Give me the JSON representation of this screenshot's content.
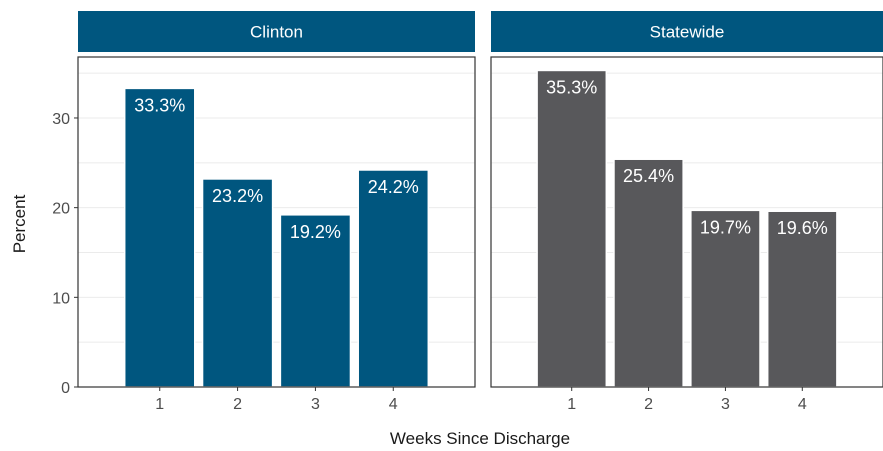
{
  "chart_data": {
    "type": "bar",
    "xlabel": "Weeks Since Discharge",
    "ylabel": "Percent",
    "ylim": [
      0,
      36.8
    ],
    "yticks": [
      0,
      10,
      20,
      30
    ],
    "categories": [
      "1",
      "2",
      "3",
      "4"
    ],
    "grid": true,
    "facets": [
      {
        "name": "Clinton",
        "color": "#00567F",
        "values": [
          33.3,
          23.2,
          19.2,
          24.2
        ],
        "labels": [
          "33.3%",
          "23.2%",
          "19.2%",
          "24.2%"
        ]
      },
      {
        "name": "Statewide",
        "color": "#58585B",
        "values": [
          35.3,
          25.4,
          19.7,
          19.6
        ],
        "labels": [
          "35.3%",
          "25.4%",
          "19.7%",
          "19.6%"
        ]
      }
    ]
  },
  "colors": {
    "strip_background": "#00567F",
    "gridline": "#ebebeb",
    "panel_border": "#333333"
  }
}
